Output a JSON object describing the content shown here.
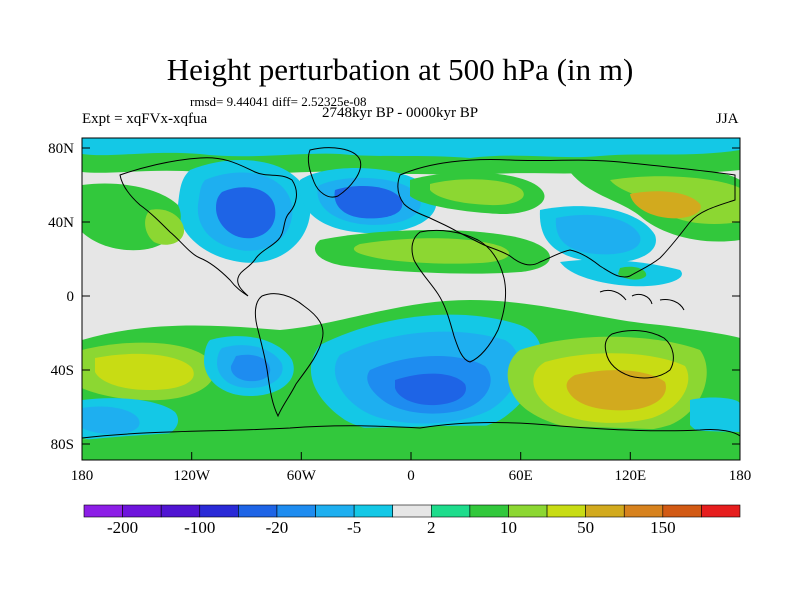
{
  "title": "Height perturbation at 500 hPa (in m)",
  "stats": "rmsd= 9.44041  diff= 2.52325e-08",
  "experiment": "Expt = xqFVx-xqfua",
  "period": "2748kyr BP - 0000kyr BP",
  "season": "JJA",
  "lat_labels": [
    "80N",
    "40N",
    "0",
    "40S",
    "80S"
  ],
  "lon_labels": [
    "180",
    "120W",
    "60W",
    "0",
    "60E",
    "120E",
    "180"
  ],
  "colorbar": {
    "colors": [
      "#8c1ee6",
      "#6e14dc",
      "#5014d2",
      "#2a2ad7",
      "#1e64e6",
      "#1e8cf0",
      "#1eaff0",
      "#14c8e6",
      "#e6e6e6",
      "#1edc8c",
      "#32c83c",
      "#8cd732",
      "#c8dc14",
      "#d2aa1e",
      "#d7821e",
      "#d25a14",
      "#e61e1e"
    ],
    "labels": [
      "-200",
      "-100",
      "-20",
      "-5",
      "2",
      "10",
      "50",
      "150"
    ]
  },
  "palette": {
    "neutral": "#e6e6e6",
    "blue1": "#14c8e6",
    "blue2": "#1eaff0",
    "blue3": "#1e8cf0",
    "blue4": "#1e64e6",
    "blue5": "#2a2ad7",
    "green1": "#1edc8c",
    "green2": "#32c83c",
    "yellow1": "#8cd732",
    "yellow2": "#c8dc14",
    "orange1": "#d2aa1e"
  }
}
